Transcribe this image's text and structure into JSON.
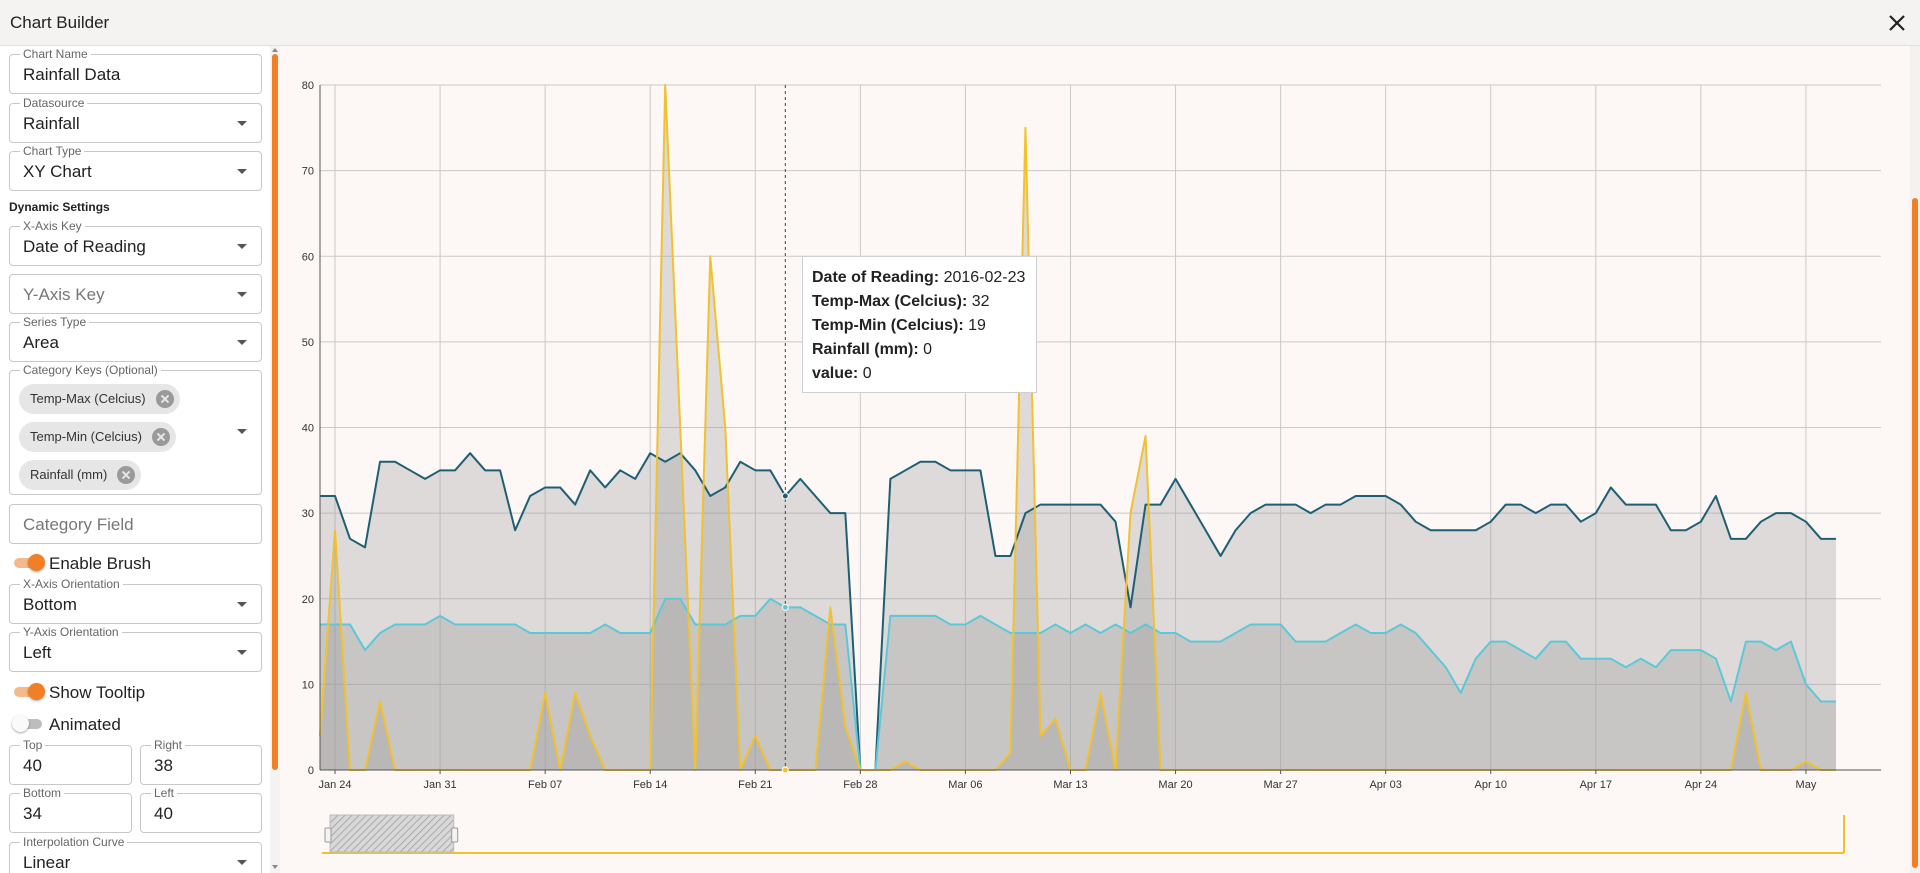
{
  "dialog": {
    "title": "Chart Builder",
    "close_icon": "close-icon"
  },
  "panel": {
    "chart_name": {
      "label": "Chart Name",
      "value": "Rainfall Data"
    },
    "datasource": {
      "label": "Datasource",
      "value": "Rainfall"
    },
    "chart_type": {
      "label": "Chart Type",
      "value": "XY Chart"
    },
    "dynamic_settings_title": "Dynamic Settings",
    "x_axis_key": {
      "label": "X-Axis Key",
      "value": "Date of Reading"
    },
    "y_axis_key": {
      "placeholder": "Y-Axis Key"
    },
    "series_type": {
      "label": "Series Type",
      "value": "Area"
    },
    "category_keys": {
      "label": "Category Keys (Optional)",
      "chips": [
        "Temp-Max (Celcius)",
        "Temp-Min (Celcius)",
        "Rainfall (mm)"
      ]
    },
    "category_field": {
      "placeholder": "Category Field"
    },
    "enable_brush": {
      "label": "Enable Brush",
      "on": true
    },
    "x_axis_orientation": {
      "label": "X-Axis Orientation",
      "value": "Bottom"
    },
    "y_axis_orientation": {
      "label": "Y-Axis Orientation",
      "value": "Left"
    },
    "show_tooltip": {
      "label": "Show Tooltip",
      "on": true
    },
    "animated": {
      "label": "Animated",
      "on": false
    },
    "margins": {
      "top": {
        "label": "Top",
        "value": "40"
      },
      "right": {
        "label": "Right",
        "value": "38"
      },
      "bottom": {
        "label": "Bottom",
        "value": "34"
      },
      "left": {
        "label": "Left",
        "value": "40"
      }
    },
    "interpolation_curve": {
      "label": "Interpolation Curve",
      "value": "Linear"
    }
  },
  "tooltip": {
    "rows": [
      {
        "key": "Date of Reading:",
        "value": "2016-02-23"
      },
      {
        "key": "Temp-Max (Celcius):",
        "value": "32"
      },
      {
        "key": "Temp-Min (Celcius):",
        "value": "19"
      },
      {
        "key": "Rainfall (mm):",
        "value": "0"
      },
      {
        "key": "value:",
        "value": "0"
      }
    ]
  },
  "colors": {
    "accent": "#f07f25",
    "temp_max": "#1e5f73",
    "temp_min": "#5cc8d7",
    "rainfall": "#f2c12e",
    "area_fill": "#9a9a9a"
  },
  "chart_data": {
    "type": "area",
    "x_start": "2016-01-23",
    "x_end": "2016-05-06",
    "ylim": [
      0,
      80
    ],
    "yticks": [
      0,
      10,
      20,
      30,
      40,
      50,
      60,
      70,
      80
    ],
    "x_ticks": [
      {
        "date": "2016-01-24",
        "label": "Jan 24"
      },
      {
        "date": "2016-01-31",
        "label": "Jan 31"
      },
      {
        "date": "2016-02-07",
        "label": "Feb 07"
      },
      {
        "date": "2016-02-14",
        "label": "Feb 14"
      },
      {
        "date": "2016-02-21",
        "label": "Feb 21"
      },
      {
        "date": "2016-02-28",
        "label": "Feb 28"
      },
      {
        "date": "2016-03-06",
        "label": "Mar 06"
      },
      {
        "date": "2016-03-13",
        "label": "Mar 13"
      },
      {
        "date": "2016-03-20",
        "label": "Mar 20"
      },
      {
        "date": "2016-03-27",
        "label": "Mar 27"
      },
      {
        "date": "2016-04-03",
        "label": "Apr 03"
      },
      {
        "date": "2016-04-10",
        "label": "Apr 10"
      },
      {
        "date": "2016-04-17",
        "label": "Apr 17"
      },
      {
        "date": "2016-04-24",
        "label": "Apr 24"
      },
      {
        "date": "2016-05-01",
        "label": "May"
      }
    ],
    "grid": true,
    "hover_date": "2016-02-23",
    "brush": {
      "start": "2016-01-23",
      "end": "2016-02-01"
    },
    "series": [
      {
        "name": "Temp-Max (Celcius)",
        "color": "#1e5f73",
        "values": [
          32,
          32,
          27,
          26,
          36,
          36,
          35,
          34,
          35,
          35,
          37,
          35,
          35,
          28,
          32,
          33,
          33,
          31,
          35,
          33,
          35,
          34,
          37,
          36,
          37,
          35,
          32,
          33,
          36,
          35,
          35,
          32,
          34,
          32,
          30,
          30,
          0,
          0,
          34,
          35,
          36,
          36,
          35,
          35,
          35,
          25,
          25,
          30,
          31,
          31,
          31,
          31,
          31,
          29,
          19,
          31,
          31,
          34,
          31,
          28,
          25,
          28,
          30,
          31,
          31,
          31,
          30,
          31,
          31,
          32,
          32,
          32,
          31,
          29,
          28,
          28,
          28,
          28,
          29,
          31,
          31,
          30,
          31,
          31,
          29,
          30,
          33,
          31,
          31,
          31,
          28,
          28,
          29,
          32,
          27,
          27,
          29,
          30,
          30,
          29,
          27,
          27
        ]
      },
      {
        "name": "Temp-Min (Celcius)",
        "color": "#5cc8d7",
        "values": [
          17,
          17,
          17,
          14,
          16,
          17,
          17,
          17,
          18,
          17,
          17,
          17,
          17,
          17,
          16,
          16,
          16,
          16,
          16,
          17,
          16,
          16,
          16,
          20,
          20,
          17,
          17,
          17,
          18,
          18,
          20,
          19,
          19,
          18,
          17,
          17,
          0,
          0,
          18,
          18,
          18,
          18,
          17,
          17,
          18,
          17,
          16,
          16,
          16,
          17,
          16,
          17,
          16,
          17,
          16,
          17,
          16,
          16,
          15,
          15,
          15,
          16,
          17,
          17,
          17,
          15,
          15,
          15,
          16,
          17,
          16,
          16,
          17,
          16,
          14,
          12,
          9,
          13,
          15,
          15,
          14,
          13,
          15,
          15,
          13,
          13,
          13,
          12,
          13,
          12,
          14,
          14,
          14,
          13,
          8,
          15,
          15,
          14,
          15,
          10,
          8,
          8
        ]
      },
      {
        "name": "Rainfall (mm)",
        "color": "#f2c12e",
        "values": [
          4,
          28,
          0,
          0,
          8,
          0,
          0,
          0,
          0,
          0,
          0,
          0,
          0,
          0,
          0,
          9,
          0,
          9,
          4,
          0,
          0,
          0,
          0,
          80,
          40,
          0,
          60,
          40,
          0,
          4,
          0,
          0,
          0,
          0,
          19,
          5,
          0,
          0,
          0,
          1,
          0,
          0,
          0,
          0,
          0,
          0,
          2,
          75,
          4,
          6,
          0,
          0,
          9,
          0,
          30,
          39,
          0,
          0,
          0,
          0,
          0,
          0,
          0,
          0,
          0,
          0,
          0,
          0,
          0,
          0,
          0,
          0,
          0,
          0,
          0,
          0,
          0,
          0,
          0,
          0,
          0,
          0,
          0,
          0,
          0,
          0,
          0,
          0,
          0,
          0,
          0,
          0,
          0,
          0,
          0,
          9,
          0,
          0,
          0,
          1,
          0,
          0
        ]
      }
    ]
  }
}
